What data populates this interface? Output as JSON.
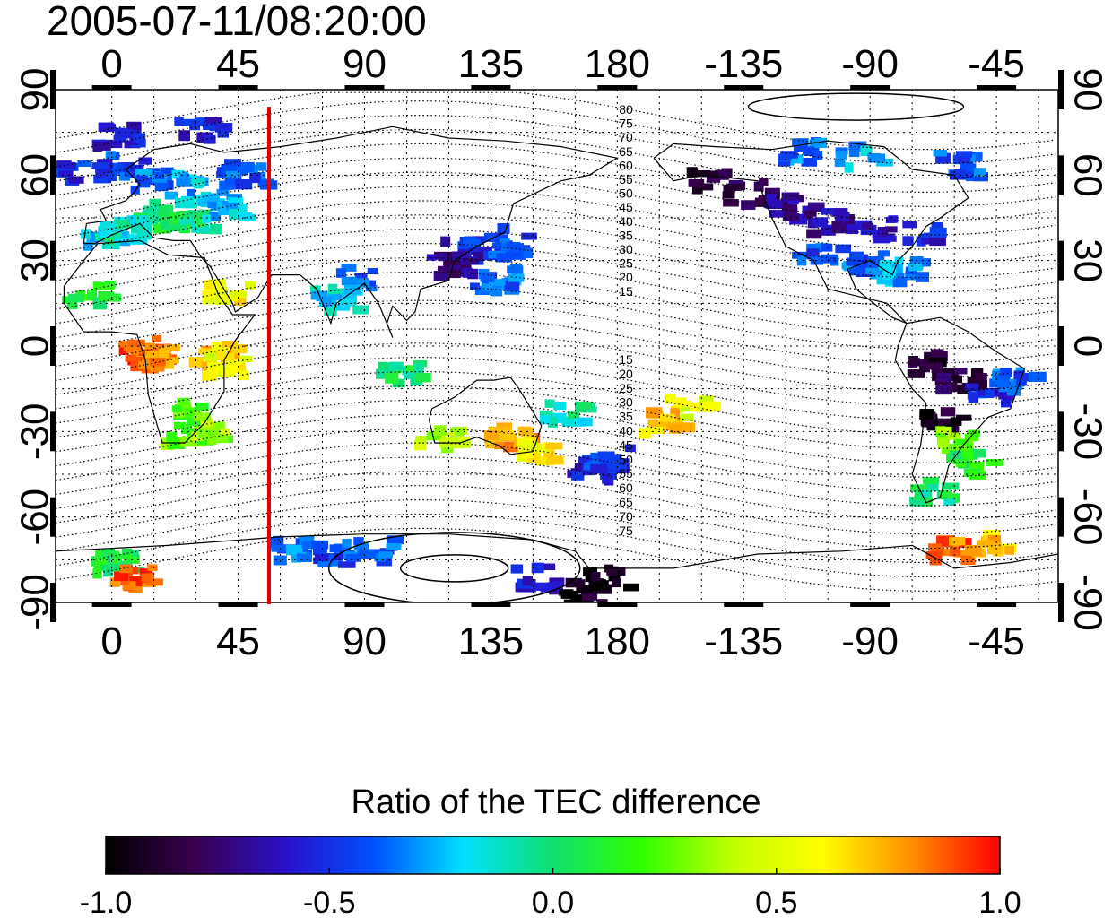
{
  "timestamp": "2005-07-11/08:20:00",
  "map": {
    "x_ticks_top": [
      "0",
      "45",
      "90",
      "135",
      "180",
      "-135",
      "-90",
      "-45"
    ],
    "x_ticks_bottom": [
      "0",
      "45",
      "90",
      "135",
      "180",
      "-135",
      "-90",
      "-45"
    ],
    "x_tick_longitudes": [
      0,
      45,
      90,
      135,
      180,
      225,
      270,
      315
    ],
    "y_ticks_left": [
      "90",
      "60",
      "30",
      "0",
      "-30",
      "-60",
      "-90"
    ],
    "y_ticks_right": [
      "90",
      "60",
      "30",
      "0",
      "-30",
      "-60",
      "-90"
    ],
    "y_tick_latitudes": [
      90,
      60,
      30,
      0,
      -30,
      -60,
      -90
    ],
    "lon_range": [
      -20,
      337
    ],
    "lat_range": [
      -90,
      90
    ],
    "terminator_longitude": 56,
    "terminator_color": "#e00000",
    "contour_labels_north": [
      "80",
      "75",
      "70",
      "65",
      "60",
      "55",
      "50",
      "45",
      "40",
      "35",
      "30",
      "25",
      "20",
      "15"
    ],
    "contour_labels_south": [
      "15",
      "20",
      "25",
      "30",
      "35",
      "40",
      "45",
      "50",
      "55",
      "60",
      "65",
      "70",
      "75"
    ]
  },
  "colorbar": {
    "title": "Ratio of the TEC difference",
    "range": [
      -1.0,
      1.0
    ],
    "tick_labels": [
      "-1.0",
      "-0.5",
      "0.0",
      "0.5",
      "1.0"
    ],
    "tick_values": [
      -1.0,
      -0.5,
      0.0,
      0.5,
      1.0
    ],
    "colormap_stops": [
      "#000000",
      "#3a0050",
      "#2a10c8",
      "#0050ff",
      "#00e0ff",
      "#10e070",
      "#30ff00",
      "#c0ff00",
      "#ffff00",
      "#ff9000",
      "#ff0000"
    ]
  },
  "tec_patches": [
    {
      "lon": 5,
      "lat": 65,
      "v": -0.45
    },
    {
      "lon": 12,
      "lat": 60,
      "v": -0.35
    },
    {
      "lon": 22,
      "lat": 58,
      "v": -0.3
    },
    {
      "lon": 30,
      "lat": 55,
      "v": -0.2
    },
    {
      "lon": 10,
      "lat": 48,
      "v": -0.05
    },
    {
      "lon": 20,
      "lat": 47,
      "v": 0.05
    },
    {
      "lon": 28,
      "lat": 45,
      "v": 0.0
    },
    {
      "lon": -5,
      "lat": 40,
      "v": -0.2
    },
    {
      "lon": 2,
      "lat": 42,
      "v": -0.1
    },
    {
      "lon": 38,
      "lat": 50,
      "v": -0.25
    },
    {
      "lon": 45,
      "lat": 62,
      "v": -0.4
    },
    {
      "lon": -12,
      "lat": 62,
      "v": -0.5
    },
    {
      "lon": 0,
      "lat": 75,
      "v": -0.6
    },
    {
      "lon": 30,
      "lat": 78,
      "v": -0.55
    },
    {
      "lon": 25,
      "lat": -30,
      "v": 0.25
    },
    {
      "lon": 32,
      "lat": -28,
      "v": 0.35
    },
    {
      "lon": 28,
      "lat": -22,
      "v": 0.2
    },
    {
      "lon": 10,
      "lat": 0,
      "v": 0.9
    },
    {
      "lon": 12,
      "lat": -3,
      "v": 0.8
    },
    {
      "lon": 35,
      "lat": -2,
      "v": 0.7
    },
    {
      "lon": 38,
      "lat": -5,
      "v": 0.55
    },
    {
      "lon": -10,
      "lat": 20,
      "v": 0.1
    },
    {
      "lon": 40,
      "lat": 20,
      "v": 0.6
    },
    {
      "lon": 85,
      "lat": 25,
      "v": -0.4
    },
    {
      "lon": 78,
      "lat": 18,
      "v": -0.2
    },
    {
      "lon": 100,
      "lat": -8,
      "v": 0.0
    },
    {
      "lon": 115,
      "lat": -30,
      "v": 0.4
    },
    {
      "lon": 125,
      "lat": 35,
      "v": -0.6
    },
    {
      "lon": 130,
      "lat": 40,
      "v": -0.5
    },
    {
      "lon": 140,
      "lat": 36,
      "v": -0.45
    },
    {
      "lon": 120,
      "lat": 30,
      "v": -0.7
    },
    {
      "lon": 135,
      "lat": 25,
      "v": -0.35
    },
    {
      "lon": 140,
      "lat": -30,
      "v": 0.8
    },
    {
      "lon": 148,
      "lat": -35,
      "v": 0.6
    },
    {
      "lon": 170,
      "lat": -42,
      "v": -0.55
    },
    {
      "lon": 175,
      "lat": -38,
      "v": -0.45
    },
    {
      "lon": 160,
      "lat": -22,
      "v": -0.1
    },
    {
      "lon": 195,
      "lat": -25,
      "v": 0.7
    },
    {
      "lon": 205,
      "lat": -20,
      "v": 0.5
    },
    {
      "lon": 210,
      "lat": 60,
      "v": -0.85
    },
    {
      "lon": 225,
      "lat": 55,
      "v": -0.8
    },
    {
      "lon": 240,
      "lat": 50,
      "v": -0.7
    },
    {
      "lon": 255,
      "lat": 45,
      "v": -0.65
    },
    {
      "lon": 270,
      "lat": 42,
      "v": -0.6
    },
    {
      "lon": 285,
      "lat": 40,
      "v": -0.55
    },
    {
      "lon": 250,
      "lat": 35,
      "v": -0.45
    },
    {
      "lon": 265,
      "lat": 30,
      "v": -0.4
    },
    {
      "lon": 280,
      "lat": 28,
      "v": -0.3
    },
    {
      "lon": 245,
      "lat": 70,
      "v": -0.35
    },
    {
      "lon": 265,
      "lat": 68,
      "v": -0.25
    },
    {
      "lon": 300,
      "lat": 65,
      "v": -0.4
    },
    {
      "lon": 290,
      "lat": -5,
      "v": -0.9
    },
    {
      "lon": 300,
      "lat": -10,
      "v": -0.85
    },
    {
      "lon": 310,
      "lat": -15,
      "v": -0.5
    },
    {
      "lon": 320,
      "lat": -10,
      "v": -0.4
    },
    {
      "lon": 295,
      "lat": -25,
      "v": -0.9
    },
    {
      "lon": 300,
      "lat": -32,
      "v": 0.3
    },
    {
      "lon": 305,
      "lat": -40,
      "v": 0.1
    },
    {
      "lon": 290,
      "lat": -50,
      "v": 0.0
    },
    {
      "lon": 295,
      "lat": -70,
      "v": 0.85
    },
    {
      "lon": 60,
      "lat": -70,
      "v": -0.35
    },
    {
      "lon": 75,
      "lat": -72,
      "v": -0.45
    },
    {
      "lon": 90,
      "lat": -70,
      "v": -0.4
    },
    {
      "lon": 150,
      "lat": -80,
      "v": -0.6
    },
    {
      "lon": 165,
      "lat": -85,
      "v": -0.95
    },
    {
      "lon": 175,
      "lat": -80,
      "v": -0.98
    },
    {
      "lon": 0,
      "lat": -75,
      "v": 0.05
    },
    {
      "lon": 5,
      "lat": -80,
      "v": 0.9
    },
    {
      "lon": 310,
      "lat": -68,
      "v": 0.7
    }
  ]
}
